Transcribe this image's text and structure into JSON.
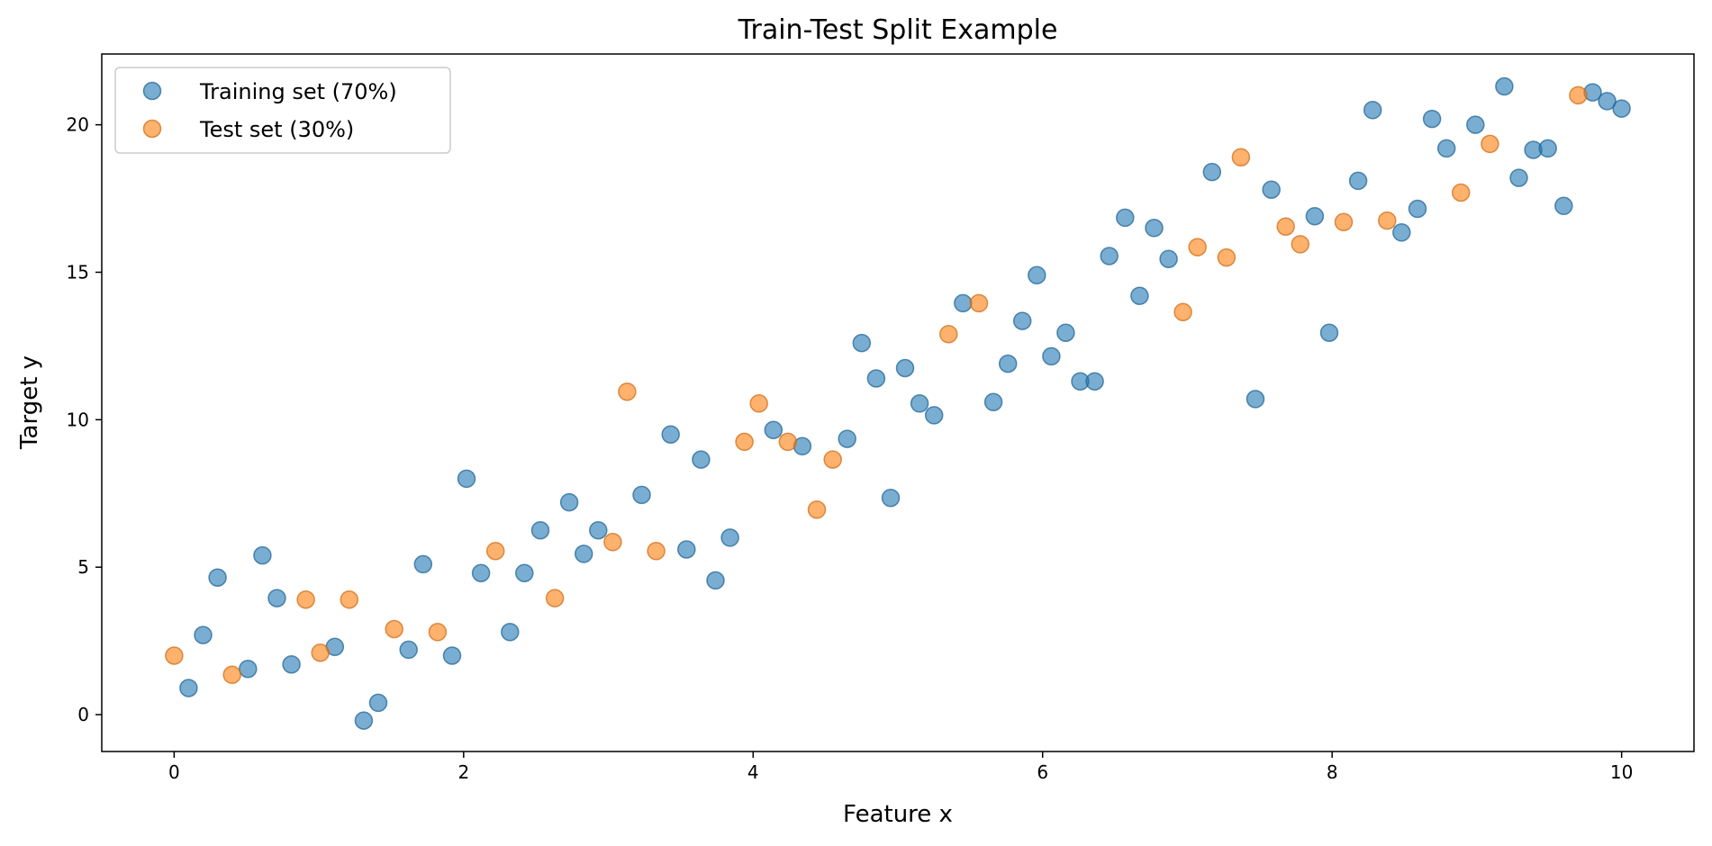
{
  "chart_data": {
    "type": "scatter",
    "title": "Train-Test Split Example",
    "xlabel": "Feature x",
    "ylabel": "Target y",
    "xlim": [
      -0.5,
      10.5
    ],
    "ylim": [
      -1.25,
      22.4
    ],
    "xticks": [
      0,
      2,
      4,
      6,
      8,
      10
    ],
    "yticks": [
      0,
      5,
      10,
      15,
      20
    ],
    "grid": false,
    "legend_position": "top-left",
    "series": [
      {
        "name": "Training set (70%)",
        "color": "#1f77b4",
        "points": [
          [
            0.1,
            0.9
          ],
          [
            0.2,
            2.7
          ],
          [
            0.3,
            4.65
          ],
          [
            0.51,
            1.55
          ],
          [
            0.61,
            5.4
          ],
          [
            0.71,
            3.95
          ],
          [
            0.81,
            1.7
          ],
          [
            1.11,
            2.3
          ],
          [
            1.31,
            -0.2
          ],
          [
            1.41,
            0.4
          ],
          [
            1.62,
            2.2
          ],
          [
            1.72,
            5.1
          ],
          [
            1.92,
            2.0
          ],
          [
            2.02,
            8.0
          ],
          [
            2.12,
            4.8
          ],
          [
            2.32,
            2.8
          ],
          [
            2.42,
            4.8
          ],
          [
            2.53,
            6.25
          ],
          [
            2.73,
            7.2
          ],
          [
            2.83,
            5.45
          ],
          [
            2.93,
            6.25
          ],
          [
            3.23,
            7.45
          ],
          [
            3.43,
            9.5
          ],
          [
            3.54,
            5.6
          ],
          [
            3.64,
            8.65
          ],
          [
            3.74,
            4.55
          ],
          [
            3.84,
            6.0
          ],
          [
            4.14,
            9.65
          ],
          [
            4.34,
            9.1
          ],
          [
            4.65,
            9.35
          ],
          [
            4.75,
            12.6
          ],
          [
            4.85,
            11.4
          ],
          [
            4.95,
            7.35
          ],
          [
            5.05,
            11.75
          ],
          [
            5.15,
            10.55
          ],
          [
            5.25,
            10.15
          ],
          [
            5.45,
            13.95
          ],
          [
            5.66,
            10.6
          ],
          [
            5.76,
            11.9
          ],
          [
            5.86,
            13.35
          ],
          [
            5.96,
            14.9
          ],
          [
            6.06,
            12.15
          ],
          [
            6.16,
            12.95
          ],
          [
            6.26,
            11.3
          ],
          [
            6.36,
            11.3
          ],
          [
            6.46,
            15.55
          ],
          [
            6.57,
            16.85
          ],
          [
            6.67,
            14.2
          ],
          [
            6.77,
            16.5
          ],
          [
            6.87,
            15.45
          ],
          [
            7.17,
            18.4
          ],
          [
            7.47,
            10.7
          ],
          [
            7.58,
            17.8
          ],
          [
            7.88,
            16.9
          ],
          [
            7.98,
            12.95
          ],
          [
            8.18,
            18.1
          ],
          [
            8.28,
            20.5
          ],
          [
            8.48,
            16.35
          ],
          [
            8.59,
            17.15
          ],
          [
            8.69,
            20.2
          ],
          [
            8.79,
            19.2
          ],
          [
            8.99,
            20.0
          ],
          [
            9.19,
            21.3
          ],
          [
            9.29,
            18.2
          ],
          [
            9.39,
            19.15
          ],
          [
            9.49,
            19.2
          ],
          [
            9.6,
            17.25
          ],
          [
            9.8,
            21.1
          ],
          [
            9.9,
            20.8
          ],
          [
            10.0,
            20.55
          ]
        ]
      },
      {
        "name": "Test set (30%)",
        "color": "#ff7f0e",
        "points": [
          [
            0.0,
            2.0
          ],
          [
            0.4,
            1.35
          ],
          [
            0.91,
            3.9
          ],
          [
            1.01,
            2.1
          ],
          [
            1.21,
            3.9
          ],
          [
            1.52,
            2.9
          ],
          [
            1.82,
            2.8
          ],
          [
            2.22,
            5.55
          ],
          [
            2.63,
            3.95
          ],
          [
            3.03,
            5.85
          ],
          [
            3.13,
            10.95
          ],
          [
            3.33,
            5.55
          ],
          [
            3.94,
            9.25
          ],
          [
            4.04,
            10.55
          ],
          [
            4.24,
            9.25
          ],
          [
            4.44,
            6.95
          ],
          [
            4.55,
            8.65
          ],
          [
            5.35,
            12.9
          ],
          [
            5.56,
            13.95
          ],
          [
            6.97,
            13.65
          ],
          [
            7.07,
            15.85
          ],
          [
            7.27,
            15.5
          ],
          [
            7.37,
            18.9
          ],
          [
            7.68,
            16.55
          ],
          [
            7.78,
            15.95
          ],
          [
            8.08,
            16.7
          ],
          [
            8.38,
            16.75
          ],
          [
            8.89,
            17.7
          ],
          [
            9.09,
            19.35
          ],
          [
            9.7,
            21.0
          ]
        ]
      }
    ]
  }
}
